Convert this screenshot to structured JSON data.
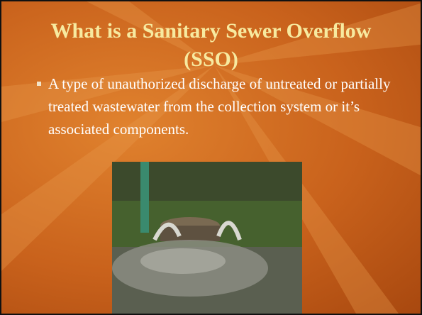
{
  "slide": {
    "title": "What is a Sanitary Sewer Overflow (SSO)",
    "bullets": [
      "A type of unauthorized discharge of untreated or partially treated wastewater from the collection system or it’s associated components."
    ]
  }
}
